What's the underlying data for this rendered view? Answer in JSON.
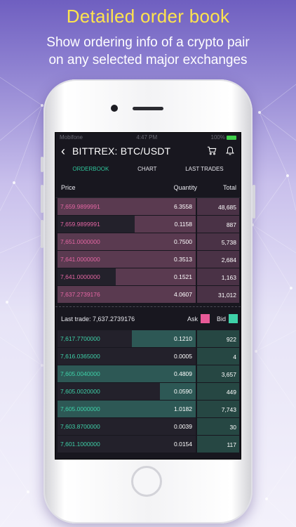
{
  "headline": "Detailed order book",
  "subline_1": "Show ordering info of a crypto pair",
  "subline_2": "on any selected major exchanges",
  "status": {
    "carrier": "Mobifone",
    "time": "4:47 PM",
    "battery": "100%"
  },
  "nav": {
    "back_icon": "chevron-left-icon",
    "title": "BITTREX: BTC/USDT",
    "cart_icon": "cart-icon",
    "bell_icon": "bell-icon"
  },
  "tabs": [
    {
      "label": "ORDERBOOK",
      "active": true
    },
    {
      "label": "CHART",
      "active": false
    },
    {
      "label": "LAST TRADES",
      "active": false
    }
  ],
  "columns": {
    "price": "Price",
    "quantity": "Quantity",
    "total": "Total"
  },
  "asks": [
    {
      "price": "7,659.9899991",
      "quantity": "6.3558",
      "total": "48,685",
      "depth": 1.0
    },
    {
      "price": "7,659.9899991",
      "quantity": "0.1158",
      "total": "887",
      "depth": 0.44
    },
    {
      "price": "7,651.0000000",
      "quantity": "0.7500",
      "total": "5,738",
      "depth": 1.0
    },
    {
      "price": "7,641.0000000",
      "quantity": "0.3513",
      "total": "2,684",
      "depth": 1.0
    },
    {
      "price": "7,641.0000000",
      "quantity": "0.1521",
      "total": "1,163",
      "depth": 0.58
    },
    {
      "price": "7,637.2739176",
      "quantity": "4.0607",
      "total": "31,012",
      "depth": 1.0
    }
  ],
  "last_trade": {
    "label": "Last trade: 7,637.2739176",
    "ask_label": "Ask",
    "bid_label": "Bid"
  },
  "bids": [
    {
      "price": "7,617.7700000",
      "quantity": "0.1210",
      "total": "922",
      "depth": 0.46
    },
    {
      "price": "7,616.0365000",
      "quantity": "0.0005",
      "total": "4",
      "depth": 0.0
    },
    {
      "price": "7,605.0040000",
      "quantity": "0.4809",
      "total": "3,657",
      "depth": 1.0
    },
    {
      "price": "7,605.0020000",
      "quantity": "0.0590",
      "total": "449",
      "depth": 0.26
    },
    {
      "price": "7,605.0000000",
      "quantity": "1.0182",
      "total": "7,743",
      "depth": 1.0
    },
    {
      "price": "7,603.8700000",
      "quantity": "0.0039",
      "total": "30",
      "depth": 0.0
    },
    {
      "price": "7,601.1000000",
      "quantity": "0.0154",
      "total": "117",
      "depth": 0.0
    }
  ],
  "colors": {
    "ask": "#e85a98",
    "bid": "#3ed1a8",
    "accent_headline": "#ffe44d"
  }
}
